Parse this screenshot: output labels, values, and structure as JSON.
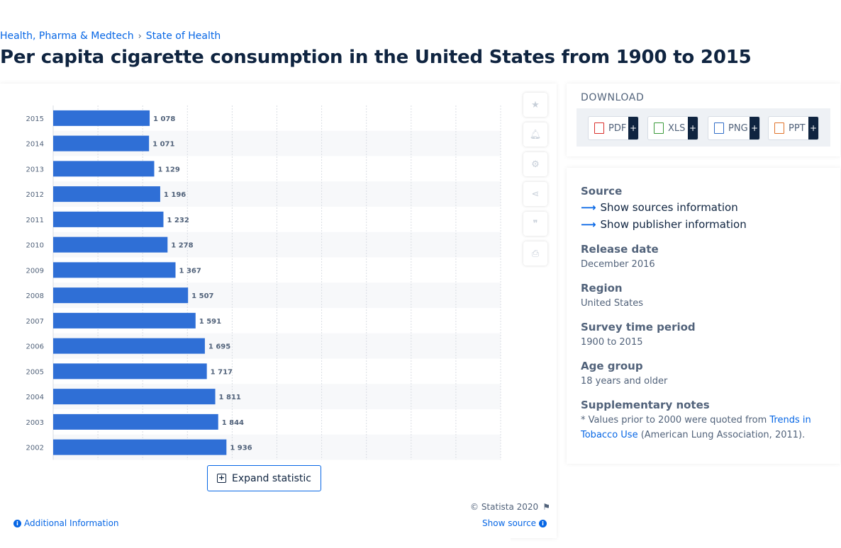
{
  "breadcrumb": {
    "items": [
      "Health, Pharma & Medtech",
      "State of Health"
    ],
    "separator": "›"
  },
  "title": "Per capita cigarette consumption in the United States from 1900 to 2015",
  "toolbar": {
    "icons": [
      "star-icon",
      "bell-icon",
      "gear-icon",
      "share-icon",
      "quote-icon",
      "print-icon"
    ]
  },
  "expand_label": "Expand statistic",
  "copyright": "© Statista 2020",
  "additional_info": "Additional Information",
  "show_source": "Show source",
  "download": {
    "title": "DOWNLOAD",
    "formats": [
      {
        "label": "PDF",
        "color": "#d9302c"
      },
      {
        "label": "XLS",
        "color": "#3a9a3a"
      },
      {
        "label": "PNG",
        "color": "#2f6cc7"
      },
      {
        "label": "PPT",
        "color": "#e0732a"
      }
    ],
    "plus": "+"
  },
  "info": {
    "source_label": "Source",
    "show_sources": "Show sources information",
    "show_publisher": "Show publisher information",
    "release_label": "Release date",
    "release_value": "December 2016",
    "region_label": "Region",
    "region_value": "United States",
    "period_label": "Survey time period",
    "period_value": "1900 to 2015",
    "age_label": "Age group",
    "age_value": "18 years and older",
    "notes_label": "Supplementary notes",
    "notes_prefix": "* Values prior to 2000 were quoted from ",
    "notes_link": "Trends in Tobacco Use",
    "notes_suffix": " (American Lung Association, 2011)."
  },
  "chart_data": {
    "type": "bar",
    "orientation": "horizontal",
    "categories": [
      "2015",
      "2014",
      "2013",
      "2012",
      "2011",
      "2010",
      "2009",
      "2008",
      "2007",
      "2006",
      "2005",
      "2004",
      "2003",
      "2002"
    ],
    "values": [
      1078,
      1071,
      1129,
      1196,
      1232,
      1278,
      1367,
      1507,
      1591,
      1695,
      1717,
      1811,
      1844,
      1936
    ],
    "value_labels": [
      "1 078",
      "1 071",
      "1 129",
      "1 196",
      "1 232",
      "1 278",
      "1 367",
      "1 507",
      "1 591",
      "1 695",
      "1 717",
      "1 811",
      "1 844",
      "1 936"
    ],
    "xlim": [
      0,
      5000
    ],
    "bar_color": "#2f6fd6",
    "grid": true
  }
}
